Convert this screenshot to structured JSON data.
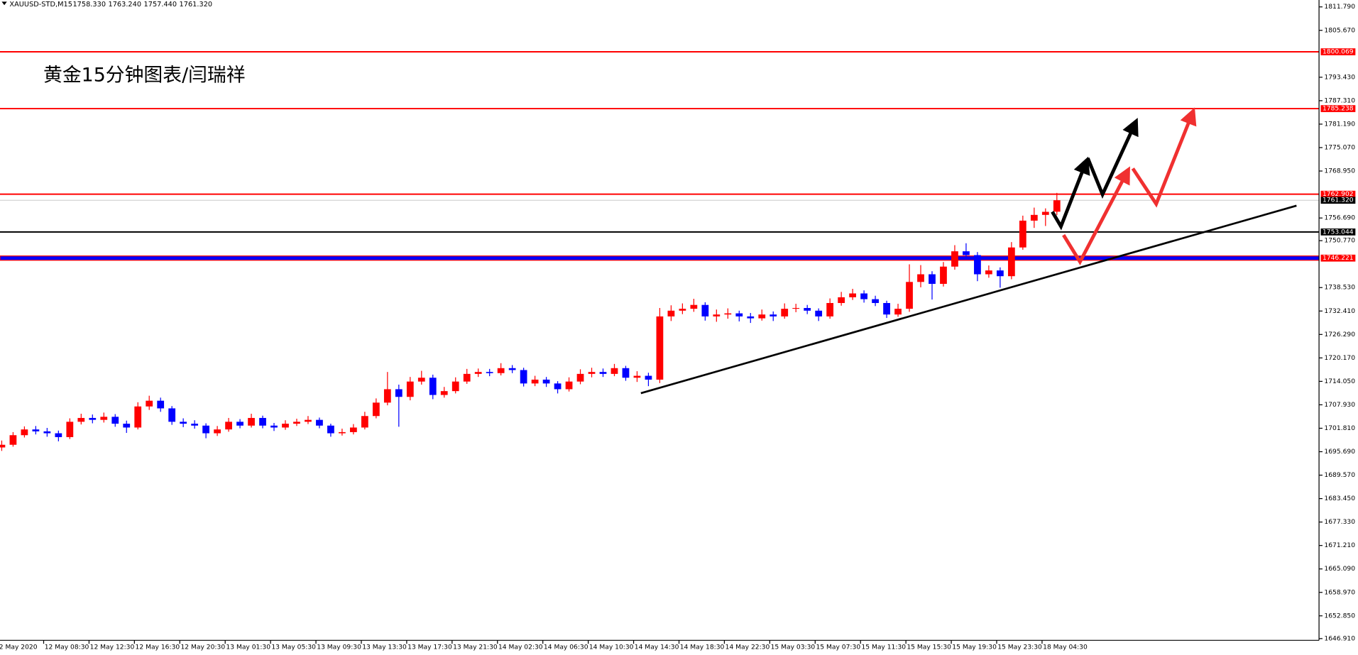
{
  "chart_data": {
    "type": "candlestick",
    "symbol": "XAUUSD-STD,M15",
    "ohlc_text": [
      "1758.330",
      "1763.240",
      "1757.440",
      "1761.320"
    ],
    "title": "黄金15分钟图表/闫瑞祥",
    "up_color": "#ff0000",
    "down_color": "#0000ff",
    "ylim": [
      1646.46,
      1813.59
    ],
    "yticks": [
      {
        "value": 1811.79,
        "label": "1811.790"
      },
      {
        "value": 1805.67,
        "label": "1805.670"
      },
      {
        "value": 1793.43,
        "label": "1793.430"
      },
      {
        "value": 1787.31,
        "label": "1787.310"
      },
      {
        "value": 1781.19,
        "label": "1781.190"
      },
      {
        "value": 1775.07,
        "label": "1775.070"
      },
      {
        "value": 1768.95,
        "label": "1768.950"
      },
      {
        "value": 1756.69,
        "label": "1756.690"
      },
      {
        "value": 1750.77,
        "label": "1750.770"
      },
      {
        "value": 1738.53,
        "label": "1738.530"
      },
      {
        "value": 1732.41,
        "label": "1732.410"
      },
      {
        "value": 1726.29,
        "label": "1726.290"
      },
      {
        "value": 1720.17,
        "label": "1720.170"
      },
      {
        "value": 1714.05,
        "label": "1714.050"
      },
      {
        "value": 1707.93,
        "label": "1707.930"
      },
      {
        "value": 1701.81,
        "label": "1701.810"
      },
      {
        "value": 1695.69,
        "label": "1695.690"
      },
      {
        "value": 1689.57,
        "label": "1689.570"
      },
      {
        "value": 1683.45,
        "label": "1683.450"
      },
      {
        "value": 1677.33,
        "label": "1677.330"
      },
      {
        "value": 1671.21,
        "label": "1671.210"
      },
      {
        "value": 1665.09,
        "label": "1665.090"
      },
      {
        "value": 1658.97,
        "label": "1658.970"
      },
      {
        "value": 1652.85,
        "label": "1652.850"
      },
      {
        "value": 1646.91,
        "label": "1646.910"
      }
    ],
    "levels": [
      {
        "value": 1800.069,
        "label": "1800.069",
        "color": "#ff0000"
      },
      {
        "value": 1785.238,
        "label": "1785.238",
        "color": "#ff0000"
      },
      {
        "value": 1762.902,
        "label": "1762.902",
        "color": "#ff0000"
      },
      {
        "value": 1761.32,
        "label": "1761.320",
        "color": "#c0c0c0"
      },
      {
        "value": 1753.044,
        "label": "1753.044",
        "color": "#000000"
      },
      {
        "value": 1746.221,
        "label": "1746.221",
        "color": "#0000ff"
      }
    ],
    "xlabels": [
      "2 May 2020",
      "12 May 08:30",
      "12 May 12:30",
      "12 May 16:30",
      "12 May 20:30",
      "13 May 01:30",
      "13 May 05:30",
      "13 May 09:30",
      "13 May 13:30",
      "13 May 17:30",
      "13 May 21:30",
      "14 May 02:30",
      "14 May 06:30",
      "14 May 10:30",
      "14 May 14:30",
      "14 May 18:30",
      "14 May 22:30",
      "15 May 03:30",
      "15 May 07:30",
      "15 May 11:30",
      "15 May 15:30",
      "15 May 19:30",
      "15 May 23:30",
      "18 May 04:30"
    ],
    "ohlc": [
      [
        1696.8,
        1698.6,
        1695.9,
        1697.5
      ],
      [
        1697.5,
        1700.8,
        1697.0,
        1700.0
      ],
      [
        1700.0,
        1702.3,
        1699.4,
        1701.5
      ],
      [
        1701.5,
        1702.4,
        1700.2,
        1701.0
      ],
      [
        1701.0,
        1701.9,
        1699.6,
        1700.5
      ],
      [
        1700.5,
        1701.2,
        1698.4,
        1699.5
      ],
      [
        1699.5,
        1704.4,
        1699.0,
        1703.5
      ],
      [
        1703.5,
        1705.6,
        1702.8,
        1704.5
      ],
      [
        1704.5,
        1705.4,
        1703.1,
        1704.0
      ],
      [
        1704.0,
        1705.9,
        1703.3,
        1704.8
      ],
      [
        1704.8,
        1705.5,
        1702.2,
        1703.0
      ],
      [
        1703.0,
        1703.8,
        1700.6,
        1702.0
      ],
      [
        1702.0,
        1708.6,
        1701.5,
        1707.5
      ],
      [
        1707.5,
        1710.3,
        1706.6,
        1709.0
      ],
      [
        1709.0,
        1709.8,
        1706.1,
        1707.0
      ],
      [
        1707.0,
        1707.6,
        1702.7,
        1703.5
      ],
      [
        1703.5,
        1704.4,
        1702.1,
        1703.0
      ],
      [
        1703.0,
        1703.9,
        1701.7,
        1702.5
      ],
      [
        1702.5,
        1703.1,
        1699.2,
        1700.5
      ],
      [
        1700.5,
        1702.4,
        1699.8,
        1701.5
      ],
      [
        1701.5,
        1704.5,
        1700.9,
        1703.5
      ],
      [
        1703.5,
        1704.2,
        1701.8,
        1702.5
      ],
      [
        1702.5,
        1705.6,
        1702.0,
        1704.5
      ],
      [
        1704.5,
        1705.1,
        1701.8,
        1702.5
      ],
      [
        1702.5,
        1703.2,
        1701.1,
        1702.0
      ],
      [
        1702.0,
        1703.9,
        1701.4,
        1703.0
      ],
      [
        1703.0,
        1704.3,
        1702.4,
        1703.5
      ],
      [
        1703.5,
        1705.0,
        1702.9,
        1704.0
      ],
      [
        1704.0,
        1704.6,
        1701.8,
        1702.5
      ],
      [
        1702.5,
        1703.0,
        1699.6,
        1700.5
      ],
      [
        1700.5,
        1701.7,
        1699.9,
        1700.8
      ],
      [
        1700.8,
        1702.9,
        1700.2,
        1702.0
      ],
      [
        1702.0,
        1706.1,
        1701.5,
        1705.0
      ],
      [
        1705.0,
        1709.6,
        1704.4,
        1708.5
      ],
      [
        1708.5,
        1716.5,
        1707.8,
        1712.0
      ],
      [
        1712.0,
        1713.2,
        1702.2,
        1710.0
      ],
      [
        1710.0,
        1715.2,
        1709.1,
        1714.0
      ],
      [
        1714.0,
        1716.8,
        1713.2,
        1715.0
      ],
      [
        1715.0,
        1715.8,
        1709.4,
        1710.5
      ],
      [
        1710.5,
        1712.6,
        1709.8,
        1711.5
      ],
      [
        1711.5,
        1715.1,
        1710.9,
        1714.0
      ],
      [
        1714.0,
        1717.3,
        1713.4,
        1716.0
      ],
      [
        1716.0,
        1717.4,
        1715.2,
        1716.5
      ],
      [
        1716.5,
        1717.3,
        1715.4,
        1716.2
      ],
      [
        1716.2,
        1718.8,
        1715.6,
        1717.5
      ],
      [
        1717.5,
        1718.3,
        1716.2,
        1717.0
      ],
      [
        1717.0,
        1717.6,
        1712.7,
        1713.5
      ],
      [
        1713.5,
        1715.5,
        1712.8,
        1714.5
      ],
      [
        1714.5,
        1715.2,
        1712.6,
        1713.5
      ],
      [
        1713.5,
        1714.1,
        1710.9,
        1712.0
      ],
      [
        1712.0,
        1715.1,
        1711.4,
        1714.0
      ],
      [
        1714.0,
        1717.2,
        1713.3,
        1716.0
      ],
      [
        1716.0,
        1717.6,
        1715.1,
        1716.5
      ],
      [
        1716.5,
        1717.4,
        1715.2,
        1716.0
      ],
      [
        1716.0,
        1718.6,
        1715.4,
        1717.5
      ],
      [
        1717.5,
        1718.1,
        1714.2,
        1715.0
      ],
      [
        1715.0,
        1716.7,
        1713.9,
        1715.5
      ],
      [
        1715.5,
        1716.3,
        1712.8,
        1714.5
      ],
      [
        1714.5,
        1733.2,
        1713.6,
        1731.0
      ],
      [
        1731.0,
        1733.9,
        1729.8,
        1732.5
      ],
      [
        1732.5,
        1734.4,
        1731.6,
        1733.0
      ],
      [
        1733.0,
        1735.6,
        1732.2,
        1734.0
      ],
      [
        1734.0,
        1734.7,
        1729.9,
        1731.0
      ],
      [
        1731.0,
        1732.8,
        1729.6,
        1731.5
      ],
      [
        1731.5,
        1733.1,
        1730.4,
        1731.8
      ],
      [
        1731.8,
        1732.5,
        1729.7,
        1731.0
      ],
      [
        1731.0,
        1731.9,
        1729.3,
        1730.5
      ],
      [
        1730.5,
        1732.8,
        1729.9,
        1731.5
      ],
      [
        1731.5,
        1732.3,
        1729.8,
        1731.0
      ],
      [
        1731.0,
        1734.4,
        1730.4,
        1733.0
      ],
      [
        1733.0,
        1734.3,
        1732.1,
        1733.2
      ],
      [
        1733.2,
        1734.0,
        1731.6,
        1732.5
      ],
      [
        1732.5,
        1733.1,
        1729.8,
        1731.0
      ],
      [
        1731.0,
        1735.7,
        1730.4,
        1734.5
      ],
      [
        1734.5,
        1737.4,
        1733.8,
        1736.0
      ],
      [
        1736.0,
        1738.2,
        1735.3,
        1737.0
      ],
      [
        1737.0,
        1737.8,
        1734.6,
        1735.5
      ],
      [
        1735.5,
        1736.4,
        1733.7,
        1734.5
      ],
      [
        1734.5,
        1735.1,
        1730.6,
        1731.5
      ],
      [
        1731.5,
        1734.3,
        1730.9,
        1733.0
      ],
      [
        1733.0,
        1744.6,
        1732.2,
        1740.0
      ],
      [
        1740.0,
        1744.4,
        1738.6,
        1742.0
      ],
      [
        1742.0,
        1742.8,
        1735.4,
        1739.5
      ],
      [
        1739.5,
        1745.2,
        1738.8,
        1744.0
      ],
      [
        1744.0,
        1749.6,
        1743.2,
        1748.0
      ],
      [
        1748.0,
        1750.1,
        1746.1,
        1747.0
      ],
      [
        1747.0,
        1747.8,
        1740.2,
        1742.0
      ],
      [
        1742.0,
        1744.3,
        1741.1,
        1743.0
      ],
      [
        1743.0,
        1743.8,
        1738.5,
        1741.5
      ],
      [
        1741.5,
        1750.4,
        1740.7,
        1749.0
      ],
      [
        1749.0,
        1757.3,
        1748.4,
        1756.0
      ],
      [
        1756.0,
        1759.4,
        1754.1,
        1757.5
      ],
      [
        1757.5,
        1759.2,
        1754.6,
        1758.3
      ],
      [
        1758.33,
        1763.24,
        1757.44,
        1761.32
      ]
    ]
  }
}
